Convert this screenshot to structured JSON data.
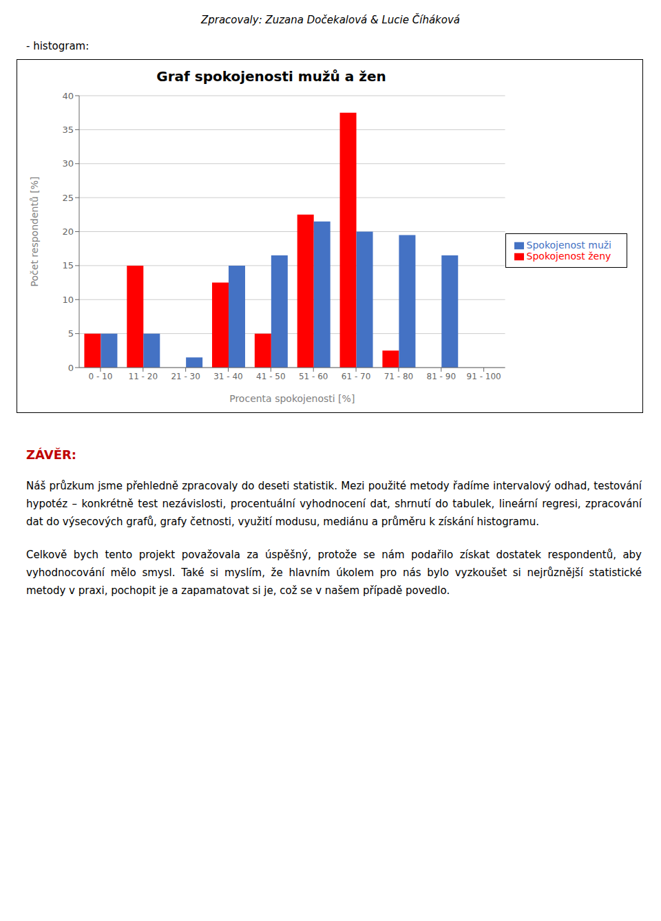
{
  "chart_data": {
    "type": "bar",
    "title": "Graf spokojenosti mužů a žen",
    "subtitle": "- histogram:",
    "x_label": "Procenta spokojenosti [%]",
    "y_label": "Počet respondentů [%]",
    "categories": [
      "0 - 10",
      "11 - 20",
      "21 - 30",
      "31 - 40",
      "41 - 50",
      "51 - 60",
      "61 - 70",
      "71 - 80",
      "81 - 90",
      "91 - 100"
    ],
    "series": [
      {
        "name": "Spokojenost ženy",
        "color": "#FF0000",
        "values": [
          5,
          15,
          0,
          12.5,
          5,
          22.5,
          37.5,
          2.5,
          0,
          0
        ]
      },
      {
        "name": "Spokojenost muži",
        "color": "#4472C4",
        "values": [
          5,
          5,
          1.5,
          15,
          16.5,
          21.5,
          20,
          19.5,
          16.5,
          0
        ]
      }
    ],
    "ylim": [
      0,
      40
    ],
    "yticks": [
      0,
      5,
      10,
      15,
      20,
      25,
      30,
      35,
      40
    ],
    "grid": true,
    "legend": "right",
    "annotations": [
      {
        "text": "Zpracovaly: Zuzana Dočekalová & Lucie Číháková"
      },
      {
        "text": "ZÁVĚR:",
        "color": "#C00000"
      },
      {
        "text": "Náš průzkum jsme přehledně zpracovaly do deseti statistik. Mezi použité metody řadíme intervalový odhad, testování hypotéz – konkrétně test nezávislosti, procentuální vyhodnocení dat, shrnutí do tabulek, lineární regresi, zpracování dat do výsecových grafů, grafy četnosti, využití modusu, mediánu a průměru k získání histogramu."
      },
      {
        "text": "Celkově bych tento projekt považovala za úspěšný, protože se nám podařilo získat dostatek respondentů, aby vyhodnocování mělo smysl. Také si myslím, že hlavním úkolem pro nás bylo vyzkoušet si nejrůznější statistické metody v praxi, pochopit je a zapamatovat si je, což se v našem případě povedlo."
      }
    ]
  }
}
